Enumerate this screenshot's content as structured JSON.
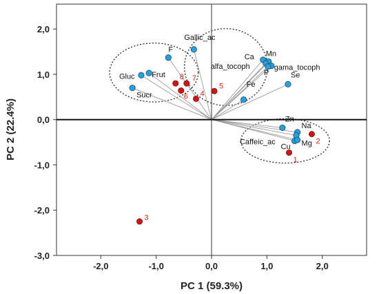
{
  "chart_data": {
    "type": "scatter",
    "xlabel": "PC 1 (59.3%)",
    "ylabel": "PC 2 (22.4%)",
    "xlim": [
      -2.8,
      2.8
    ],
    "ylim": [
      -3.0,
      2.55
    ],
    "xticks": [
      -2.0,
      -1.0,
      0.0,
      1.0,
      2.0
    ],
    "yticks": [
      -3.0,
      -2.0,
      -1.0,
      0.0,
      1.0,
      2.0
    ],
    "xtick_labels": [
      "-2,0",
      "-1,0",
      "0,0",
      "1,0",
      "2,0"
    ],
    "ytick_labels": [
      "-3,0",
      "-2,0",
      "-1,0",
      "0,0",
      "1,0",
      "2,0"
    ],
    "grid": false,
    "colors": {
      "variables": "#2a9fd8",
      "observations": "#c81818",
      "loading_lines": "#9a9a9a",
      "ellipses": "#333333"
    },
    "variables": [
      {
        "label": "Gallic_ac",
        "x": -0.32,
        "y": 1.55
      },
      {
        "label": "F",
        "x": -0.78,
        "y": 1.37
      },
      {
        "label": "Gluc",
        "x": -1.27,
        "y": 0.98
      },
      {
        "label": "Frut",
        "x": -1.13,
        "y": 1.03
      },
      {
        "label": "Sucr",
        "x": -1.43,
        "y": 0.7
      },
      {
        "label": "Ca",
        "x": 0.93,
        "y": 1.32
      },
      {
        "label": "Mn",
        "x": 1.03,
        "y": 1.28
      },
      {
        "label": "alfa_tocoph",
        "x": 0.98,
        "y": 1.24
      },
      {
        "label": "gama_tocoph",
        "x": 1.08,
        "y": 1.19
      },
      {
        "label": "P",
        "x": 1.02,
        "y": 1.17
      },
      {
        "label": "Se",
        "x": 1.38,
        "y": 0.78
      },
      {
        "label": "Fe",
        "x": 0.58,
        "y": 0.44
      },
      {
        "label": "Zn",
        "x": 1.28,
        "y": -0.18
      },
      {
        "label": "Na",
        "x": 1.55,
        "y": -0.28
      },
      {
        "label": "Caffeic_ac",
        "x": 1.53,
        "y": -0.35
      },
      {
        "label": "Cu",
        "x": 1.5,
        "y": -0.47
      },
      {
        "label": "Mg",
        "x": 1.55,
        "y": -0.45
      }
    ],
    "observations": [
      {
        "label": "1",
        "x": 1.4,
        "y": -0.73
      },
      {
        "label": "2",
        "x": 1.81,
        "y": -0.32
      },
      {
        "label": "3",
        "x": -1.3,
        "y": -2.25
      },
      {
        "label": "4",
        "x": -0.28,
        "y": 0.46
      },
      {
        "label": "5",
        "x": 0.05,
        "y": 0.63
      },
      {
        "label": "6",
        "x": -0.55,
        "y": 0.64
      },
      {
        "label": "7",
        "x": -0.45,
        "y": 0.8
      },
      {
        "label": "8",
        "x": -0.65,
        "y": 0.8
      }
    ],
    "ellipses": [
      {
        "cx": -1.04,
        "cy": 1.04,
        "rx": 0.8,
        "ry": 0.65
      },
      {
        "cx": 0.26,
        "cy": 1.16,
        "rx": 0.75,
        "ry": 0.85
      },
      {
        "cx": 1.33,
        "cy": -0.47,
        "rx": 0.8,
        "ry": 0.49
      }
    ]
  }
}
